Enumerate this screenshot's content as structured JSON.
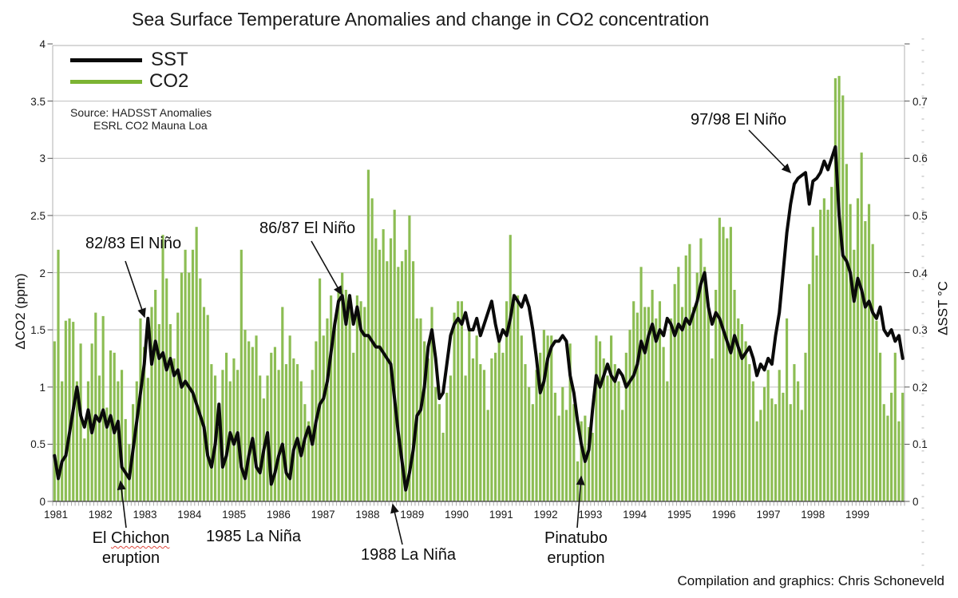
{
  "title": "Sea Surface Temperature Anomalies and change in CO2 concentration",
  "legend": {
    "sst_label": "SST",
    "co2_label": "CO2"
  },
  "source": {
    "line1": "Source: HADSST Anomalies",
    "line2": "ESRL CO2 Mauna Loa"
  },
  "credit": "Compilation and graphics: Chris Schoneveld",
  "axes": {
    "left_label": "ΔCO2 (ppm)",
    "right_label": "ΔSST °C",
    "left_ticks": [
      "4",
      "3.5",
      "3",
      "2.5",
      "2",
      "1.5",
      "1",
      "0.5",
      "0"
    ],
    "left_tick_values": [
      4,
      3.5,
      3,
      2.5,
      2,
      1.5,
      1,
      0.5,
      0
    ],
    "right_ticks": [
      "0.7",
      "0.6",
      "0.5",
      "0.4",
      "0.3",
      "0.2",
      "0.1",
      "0"
    ],
    "right_tick_values": [
      0.7,
      0.6,
      0.5,
      0.4,
      0.3,
      0.2,
      0.1,
      0
    ],
    "years": [
      "1981",
      "1982",
      "1983",
      "1984",
      "1985",
      "1986",
      "1987",
      "1988",
      "1989",
      "1990",
      "1991",
      "1992",
      "1993",
      "1994",
      "1995",
      "1996",
      "1997",
      "1998",
      "1999"
    ]
  },
  "annotations": {
    "elnino_8283": {
      "label": "82/83 El Niño",
      "arrow": [
        157,
        327,
        181,
        397
      ]
    },
    "elnino_8687": {
      "label": "86/87 El Niño",
      "arrow": [
        390,
        302,
        428,
        369
      ]
    },
    "elnino_9798": {
      "label": "97/98 El Niño",
      "arrow": [
        938,
        163,
        990,
        216
      ]
    },
    "el_chichon": {
      "line1_a": "El",
      "line1_b": "Chichon",
      "line2": "eruption",
      "arrow": [
        158,
        661,
        151,
        603
      ]
    },
    "la_nina_1985": {
      "label": "1985 La Niña"
    },
    "la_nina_1988": {
      "label": "1988 La Niña",
      "arrow": [
        504,
        682,
        492,
        632
      ]
    },
    "pinatubo": {
      "line1": "Pinatubo",
      "line2": "eruption",
      "arrow": [
        723,
        661,
        728,
        597
      ]
    }
  },
  "colors": {
    "co2_bar": "#8cbd53",
    "co2_legend": "#7cb433",
    "sst_line": "#0a0a0a",
    "grid": "#c9c9c9",
    "axis": "#555555",
    "frame": "#b0b0b0"
  },
  "chart_data": {
    "type": "bar+line combo, monthly values",
    "title": "Sea Surface Temperature Anomalies and change in CO2 concentration",
    "x_monthly_start": "1981-01",
    "x_monthly_end": "1999-12",
    "categories_years": [
      1981,
      1982,
      1983,
      1984,
      1985,
      1986,
      1987,
      1988,
      1989,
      1990,
      1991,
      1992,
      1993,
      1994,
      1995,
      1996,
      1997,
      1998,
      1999
    ],
    "left_axis": {
      "label": "ΔCO2 (ppm)",
      "range": [
        0,
        4
      ]
    },
    "right_axis": {
      "label": "ΔSST °C",
      "range": [
        0,
        0.8
      ]
    },
    "grid": "horizontal lines every 0.5 ppm (0.1 °C)",
    "legend_position": "top-left",
    "series": [
      {
        "name": "SST",
        "type": "line",
        "axis": "right",
        "unit": "°C",
        "color": "#0a0a0a",
        "values": [
          0.08,
          0.04,
          0.07,
          0.08,
          0.12,
          0.16,
          0.2,
          0.15,
          0.13,
          0.16,
          0.12,
          0.15,
          0.14,
          0.16,
          0.13,
          0.15,
          0.12,
          0.14,
          0.06,
          0.05,
          0.04,
          0.09,
          0.14,
          0.19,
          0.24,
          0.32,
          0.24,
          0.28,
          0.25,
          0.26,
          0.23,
          0.25,
          0.22,
          0.23,
          0.2,
          0.21,
          0.2,
          0.19,
          0.17,
          0.15,
          0.13,
          0.08,
          0.06,
          0.1,
          0.17,
          0.06,
          0.08,
          0.12,
          0.1,
          0.12,
          0.06,
          0.04,
          0.08,
          0.11,
          0.06,
          0.05,
          0.09,
          0.12,
          0.03,
          0.05,
          0.08,
          0.1,
          0.05,
          0.04,
          0.09,
          0.11,
          0.08,
          0.11,
          0.13,
          0.1,
          0.14,
          0.17,
          0.18,
          0.21,
          0.26,
          0.31,
          0.35,
          0.36,
          0.31,
          0.36,
          0.31,
          0.34,
          0.3,
          0.29,
          0.29,
          0.28,
          0.27,
          0.27,
          0.26,
          0.25,
          0.24,
          0.18,
          0.12,
          0.07,
          0.02,
          0.05,
          0.09,
          0.15,
          0.16,
          0.2,
          0.27,
          0.3,
          0.25,
          0.18,
          0.19,
          0.24,
          0.29,
          0.31,
          0.32,
          0.31,
          0.33,
          0.3,
          0.3,
          0.32,
          0.29,
          0.31,
          0.33,
          0.35,
          0.31,
          0.28,
          0.3,
          0.29,
          0.32,
          0.36,
          0.35,
          0.34,
          0.36,
          0.34,
          0.3,
          0.25,
          0.19,
          0.21,
          0.25,
          0.27,
          0.28,
          0.28,
          0.29,
          0.28,
          0.22,
          0.19,
          0.14,
          0.1,
          0.07,
          0.09,
          0.16,
          0.22,
          0.2,
          0.22,
          0.24,
          0.22,
          0.21,
          0.23,
          0.22,
          0.2,
          0.21,
          0.22,
          0.24,
          0.28,
          0.26,
          0.29,
          0.31,
          0.28,
          0.3,
          0.29,
          0.32,
          0.31,
          0.29,
          0.31,
          0.3,
          0.32,
          0.31,
          0.33,
          0.35,
          0.38,
          0.4,
          0.34,
          0.31,
          0.33,
          0.32,
          0.3,
          0.28,
          0.26,
          0.29,
          0.27,
          0.25,
          0.26,
          0.27,
          0.25,
          0.22,
          0.24,
          0.23,
          0.25,
          0.24,
          0.29,
          0.33,
          0.4,
          0.47,
          0.52,
          0.555,
          0.565,
          0.57,
          0.575,
          0.52,
          0.56,
          0.565,
          0.575,
          0.595,
          0.58,
          0.6,
          0.62,
          0.5,
          0.43,
          0.42,
          0.4,
          0.35,
          0.39,
          0.37,
          0.34,
          0.35,
          0.33,
          0.32,
          0.34,
          0.3,
          0.29,
          0.3,
          0.28,
          0.29,
          0.25
        ]
      },
      {
        "name": "CO2",
        "type": "bar",
        "axis": "left",
        "unit": "ppm (12-month change)",
        "color": "#8cbd53",
        "values": [
          1.4,
          2.2,
          1.05,
          1.58,
          1.6,
          1.57,
          1.05,
          1.38,
          0.55,
          1.05,
          1.38,
          1.65,
          1.1,
          1.62,
          0.82,
          1.32,
          1.3,
          1.05,
          1.15,
          0.72,
          0.5,
          0.85,
          1.05,
          1.6,
          1.35,
          1.08,
          1.7,
          1.85,
          1.55,
          2.33,
          1.95,
          1.55,
          1.25,
          1.65,
          2.0,
          2.2,
          2.0,
          2.2,
          2.4,
          1.95,
          1.7,
          1.63,
          1.2,
          1.1,
          0.65,
          1.15,
          1.3,
          1.05,
          1.25,
          1.15,
          2.2,
          1.5,
          1.4,
          1.35,
          1.45,
          1.1,
          0.9,
          1.1,
          1.3,
          1.35,
          1.15,
          1.7,
          1.2,
          1.45,
          1.25,
          1.2,
          1.05,
          0.85,
          0.7,
          1.15,
          1.4,
          1.95,
          1.45,
          1.6,
          1.8,
          1.55,
          1.85,
          2.0,
          1.85,
          1.75,
          1.3,
          1.8,
          1.75,
          1.7,
          2.9,
          2.65,
          2.3,
          2.2,
          2.38,
          2.1,
          2.3,
          2.55,
          2.05,
          2.1,
          2.2,
          2.5,
          2.1,
          1.6,
          1.6,
          1.4,
          1.25,
          1.7,
          1.0,
          0.85,
          0.6,
          0.95,
          1.1,
          1.65,
          1.75,
          1.75,
          1.1,
          1.5,
          1.25,
          1.45,
          1.2,
          1.15,
          0.8,
          1.25,
          1.3,
          1.45,
          1.3,
          1.75,
          2.33,
          1.75,
          1.8,
          1.45,
          1.2,
          1.0,
          0.85,
          1.15,
          1.3,
          1.5,
          1.45,
          1.45,
          0.95,
          0.75,
          1.0,
          0.8,
          1.38,
          0.85,
          0.35,
          0.7,
          0.75,
          0.65,
          0.6,
          1.45,
          1.4,
          1.25,
          1.1,
          1.45,
          1.2,
          1.05,
          0.8,
          1.3,
          1.5,
          1.75,
          1.65,
          2.05,
          1.7,
          1.7,
          1.85,
          1.6,
          1.75,
          1.35,
          1.05,
          1.6,
          1.9,
          2.05,
          1.7,
          2.15,
          2.25,
          1.7,
          2.0,
          2.3,
          2.05,
          1.7,
          1.25,
          1.85,
          2.48,
          2.4,
          2.3,
          2.4,
          1.85,
          1.6,
          1.55,
          1.4,
          1.2,
          1.05,
          0.7,
          0.8,
          1.0,
          1.15,
          0.9,
          0.85,
          1.15,
          0.95,
          1.6,
          0.85,
          1.2,
          1.05,
          0.8,
          1.3,
          1.9,
          2.4,
          2.15,
          2.55,
          2.65,
          2.55,
          2.75,
          3.7,
          3.72,
          3.55,
          2.95,
          2.6,
          2.2,
          2.65,
          3.05,
          2.45,
          2.6,
          2.25,
          1.58,
          1.3,
          0.85,
          0.75,
          0.95,
          1.3,
          0.7,
          0.95
        ]
      }
    ]
  }
}
